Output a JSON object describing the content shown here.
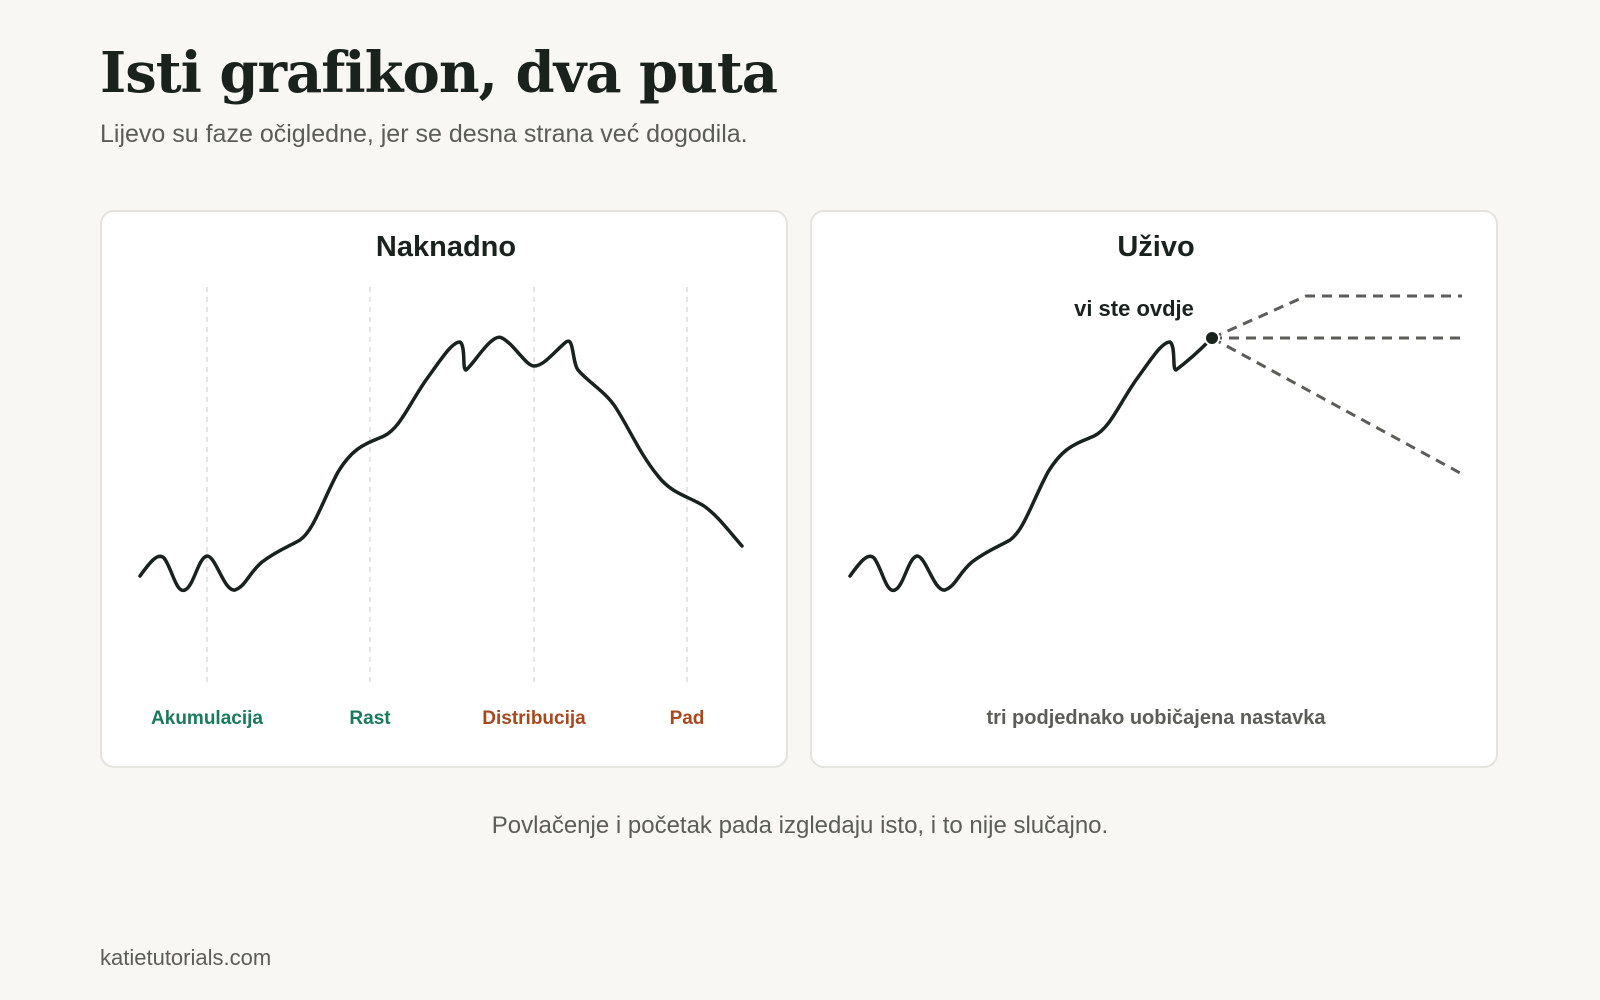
{
  "header": {
    "title": "Isti grafikon, dva puta",
    "subtitle": "Lijevo su faze očigledne, jer se desna strana već dogodila."
  },
  "left_panel": {
    "title": "Naknadno",
    "phases": [
      {
        "label": "Akumulacija",
        "color": "#1a7a5a"
      },
      {
        "label": "Rast",
        "color": "#1a7a5a"
      },
      {
        "label": "Distribucija",
        "color": "#a8481f"
      },
      {
        "label": "Pad",
        "color": "#a8481f"
      }
    ]
  },
  "right_panel": {
    "title": "Uživo",
    "marker_label": "vi ste ovdje",
    "continuation_label": "tri podjednako uobičajena nastavka"
  },
  "caption": "Povlačenje i početak pada izgledaju isto, i to nije slučajno.",
  "footer": "katietutorials.com",
  "colors": {
    "line": "#1a221e",
    "dashed": "#5b5d58",
    "accumulation_growth": "#1a7a5a",
    "distribution_decline": "#a8481f"
  }
}
